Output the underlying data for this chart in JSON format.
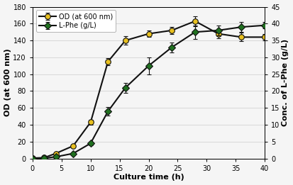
{
  "od_time": [
    0,
    2,
    4,
    7,
    10,
    13,
    16,
    20,
    24,
    28,
    32,
    36,
    40
  ],
  "od_values": [
    0.5,
    1,
    6,
    15,
    43,
    115,
    140,
    148,
    152,
    163,
    148,
    144,
    144
  ],
  "od_errors": [
    0.2,
    0.3,
    0.5,
    1.5,
    3,
    4,
    5,
    4,
    4,
    6,
    5,
    5,
    4
  ],
  "lphe_time": [
    0,
    2,
    4,
    7,
    10,
    13,
    16,
    20,
    24,
    28,
    32,
    36,
    40
  ],
  "lphe_values": [
    0,
    0.1,
    0.5,
    1.5,
    4.5,
    14,
    21,
    27.5,
    33,
    37.5,
    38,
    39,
    39.5
  ],
  "lphe_errors": [
    0,
    0.1,
    0.2,
    0.3,
    0.5,
    1.2,
    1.5,
    2.5,
    1.5,
    2.0,
    1.5,
    1.5,
    1.0
  ],
  "od_color": "#E8C020",
  "lphe_color": "#207020",
  "line_color": "#111111",
  "xlabel": "Culture time (h)",
  "ylabel_left": "OD (at 600 nm)",
  "ylabel_right": "Conc. of L-Phe (g/L)",
  "legend_od": "OD (at 600 nm)",
  "legend_lphe": "L-Phe (g/L)",
  "xlim": [
    0,
    40
  ],
  "ylim_left": [
    0,
    180
  ],
  "ylim_right": [
    0,
    45
  ],
  "yticks_left": [
    0,
    20,
    40,
    60,
    80,
    100,
    120,
    140,
    160,
    180
  ],
  "yticks_right": [
    0,
    5,
    10,
    15,
    20,
    25,
    30,
    35,
    40,
    45
  ],
  "xticks": [
    0,
    5,
    10,
    15,
    20,
    25,
    30,
    35,
    40
  ],
  "background_color": "#f5f5f5",
  "grid_color": "#cccccc"
}
